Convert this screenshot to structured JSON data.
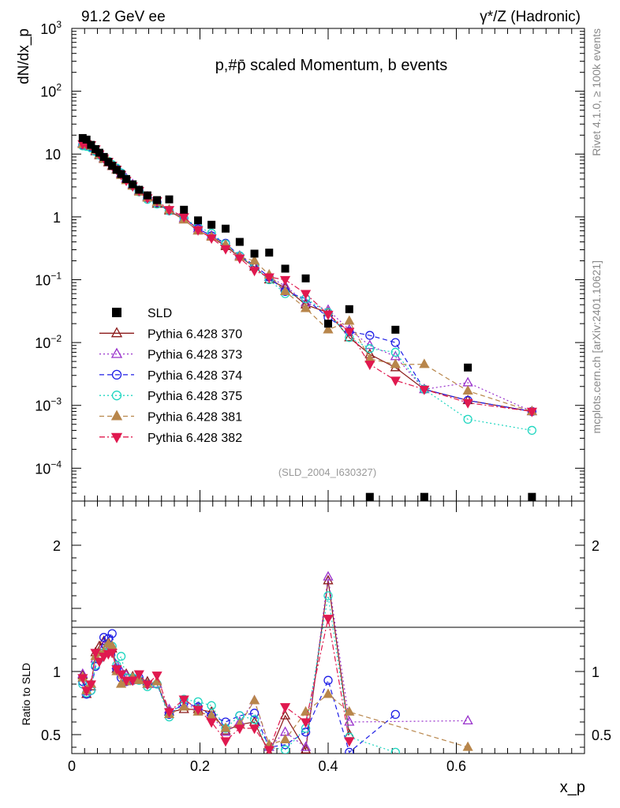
{
  "header": {
    "left": "91.2 GeV ee",
    "right": "γ*/Z (Hadronic)"
  },
  "side": {
    "rivet": "Rivet 4.1.0, ≥ 100k events",
    "mcplots": "mcplots.cern.ch [arXiv:2401.10621]"
  },
  "chart_data": {
    "type": "scatter",
    "title": "p,#p̄ scaled Momentum, b events",
    "analysis_label": "(SLD_2004_I630327)",
    "xlabel": "x_p",
    "ylabel": "dN/dx_p",
    "ratio_ylabel": "Ratio to SLD",
    "xlim": [
      0,
      0.8
    ],
    "ylim": [
      3e-05,
      1000
    ],
    "yscale": "log",
    "ratio_ylim": [
      0.35,
      2.35
    ],
    "x_ticks": [
      "0",
      "0.2",
      "0.4",
      "0.6"
    ],
    "y_ticks": [
      "10^-4",
      "10^-3",
      "10^-2",
      "10^-1",
      "1",
      "10",
      "10^2",
      "10^3"
    ],
    "ratio_ticks": [
      "0.5",
      "1",
      "2"
    ],
    "legend": [
      {
        "name": "SLD",
        "color": "#000000",
        "marker": "filled-square",
        "line": "none"
      },
      {
        "name": "Pythia 6.428 370",
        "color": "#8b1a1a",
        "marker": "open-triangle-up",
        "line": "solid"
      },
      {
        "name": "Pythia 6.428 373",
        "color": "#9932cc",
        "marker": "open-triangle-up",
        "line": "dotted"
      },
      {
        "name": "Pythia 6.428 374",
        "color": "#1e1ee6",
        "marker": "open-circle",
        "line": "dashed"
      },
      {
        "name": "Pythia 6.428 375",
        "color": "#1fd6c0",
        "marker": "open-circle",
        "line": "dotted"
      },
      {
        "name": "Pythia 6.428 381",
        "color": "#b8864b",
        "marker": "filled-triangle-up",
        "line": "dashed"
      },
      {
        "name": "Pythia 6.428 382",
        "color": "#e0194f",
        "marker": "filled-triangle-down",
        "line": "dashdot"
      }
    ],
    "x": [
      0.017,
      0.023,
      0.03,
      0.037,
      0.043,
      0.05,
      0.057,
      0.063,
      0.07,
      0.077,
      0.085,
      0.095,
      0.105,
      0.118,
      0.133,
      0.152,
      0.175,
      0.197,
      0.218,
      0.24,
      0.262,
      0.285,
      0.308,
      0.333,
      0.365,
      0.4,
      0.433,
      0.465,
      0.505,
      0.55,
      0.618,
      0.718
    ],
    "sld": [
      18,
      17,
      14,
      12,
      10.5,
      9,
      7.5,
      6.5,
      5.6,
      4.8,
      4.0,
      3.3,
      2.7,
      2.2,
      1.85,
      1.9,
      1.3,
      0.88,
      0.75,
      0.65,
      0.4,
      0.26,
      0.27,
      0.15,
      0.105,
      0.02,
      0.034,
      3.5e-05,
      0.016,
      3.5e-05,
      0.004,
      3.5e-05
    ],
    "series": [
      {
        "name": "Pythia 6.428 370",
        "values": [
          14.5,
          14.2,
          13,
          11,
          9.5,
          8.3,
          7.3,
          6.4,
          5.6,
          4.8,
          4.0,
          3.2,
          2.6,
          2.0,
          1.6,
          1.25,
          0.9,
          0.6,
          0.48,
          0.34,
          0.23,
          0.16,
          0.1,
          0.075,
          0.04,
          0.03,
          0.012,
          0.0065,
          0.004,
          0.0018,
          0.0012,
          0.0008
        ]
      },
      {
        "name": "Pythia 6.428 373",
        "values": [
          15,
          14.5,
          13.5,
          11.3,
          9.8,
          8.6,
          7.5,
          6.5,
          5.7,
          4.9,
          4.1,
          3.3,
          2.6,
          2.1,
          1.7,
          1.3,
          0.95,
          0.65,
          0.5,
          0.36,
          0.24,
          0.17,
          0.11,
          0.08,
          0.043,
          0.033,
          0.016,
          0.009,
          0.006,
          0.0018,
          0.0023,
          0.0008
        ]
      },
      {
        "name": "Pythia 6.428 374",
        "values": [
          14,
          13.8,
          13,
          11,
          9.9,
          8.8,
          7.6,
          6.6,
          5.8,
          5.0,
          4.0,
          3.2,
          2.6,
          2.0,
          1.7,
          1.25,
          0.95,
          0.65,
          0.5,
          0.38,
          0.24,
          0.17,
          0.11,
          0.065,
          0.05,
          0.025,
          0.015,
          0.013,
          0.01,
          0.0018,
          0.0012,
          0.0008
        ]
      },
      {
        "name": "Pythia 6.428 375",
        "values": [
          13.5,
          13.2,
          12.5,
          11,
          9.6,
          8.5,
          7.7,
          6.8,
          6.0,
          5.0,
          4.0,
          3.1,
          2.5,
          1.9,
          1.6,
          1.25,
          0.95,
          0.7,
          0.55,
          0.37,
          0.24,
          0.16,
          0.1,
          0.06,
          0.05,
          0.03,
          0.012,
          0.008,
          0.007,
          0.0018,
          0.0006,
          0.0004
        ]
      },
      {
        "name": "Pythia 6.428 381",
        "values": [
          14.2,
          14,
          13.5,
          11.5,
          9.8,
          8.4,
          7.5,
          6.5,
          5.6,
          4.6,
          3.8,
          3.1,
          2.5,
          2.0,
          1.7,
          1.3,
          0.9,
          0.6,
          0.48,
          0.36,
          0.23,
          0.2,
          0.12,
          0.065,
          0.035,
          0.016,
          0.022,
          0.0055,
          0.0045,
          0.0045,
          0.0017,
          0.0008
        ]
      },
      {
        "name": "Pythia 6.428 382",
        "values": [
          14.5,
          14.5,
          14,
          12,
          10,
          8.6,
          7.6,
          6.6,
          5.7,
          4.7,
          3.8,
          3.1,
          2.6,
          2.0,
          1.8,
          1.3,
          1.0,
          0.62,
          0.46,
          0.31,
          0.22,
          0.14,
          0.11,
          0.1,
          0.06,
          0.028,
          0.015,
          0.0045,
          0.0025,
          0.0018,
          0.0011,
          0.0008
        ]
      }
    ],
    "ratios": [
      {
        "name": "Pythia 6.428 370",
        "values": [
          0.97,
          0.82,
          0.88,
          1.15,
          1.2,
          1.24,
          1.23,
          1.18,
          1.02,
          1.0,
          0.98,
          0.96,
          0.95,
          0.92,
          0.9,
          0.68,
          0.7,
          0.7,
          0.68,
          0.53,
          0.58,
          0.6,
          0.35,
          0.65,
          0.38,
          1.72,
          0.5
        ]
      },
      {
        "name": "Pythia 6.428 373",
        "values": [
          0.98,
          0.84,
          0.9,
          1.1,
          1.15,
          1.2,
          1.22,
          1.2,
          1.05,
          1.0,
          0.97,
          0.95,
          0.93,
          0.9,
          0.9,
          0.7,
          0.72,
          0.72,
          0.65,
          0.52,
          0.6,
          0.77,
          0.4,
          0.52,
          0.4,
          1.75,
          0.6,
          null,
          null,
          null,
          0.61
        ]
      },
      {
        "name": "Pythia 6.428 374",
        "values": [
          0.92,
          0.82,
          0.85,
          1.04,
          1.1,
          1.27,
          1.26,
          1.3,
          1.02,
          0.95,
          0.92,
          0.93,
          0.95,
          0.9,
          0.9,
          0.66,
          0.75,
          0.72,
          0.65,
          0.6,
          0.65,
          0.67,
          0.4,
          0.42,
          0.52,
          0.93,
          0.36,
          null,
          0.66,
          null,
          null
        ]
      },
      {
        "name": "Pythia 6.428 375",
        "values": [
          0.9,
          0.83,
          0.85,
          1.05,
          1.1,
          1.15,
          1.2,
          1.2,
          1.05,
          1.12,
          0.95,
          0.95,
          0.93,
          0.88,
          0.9,
          0.64,
          0.78,
          0.76,
          0.73,
          0.55,
          0.65,
          0.62,
          0.4,
          0.38,
          0.55,
          1.6,
          0.48,
          null,
          0.36
        ]
      },
      {
        "name": "Pythia 6.428 381",
        "values": [
          0.95,
          0.85,
          0.9,
          1.12,
          1.15,
          1.15,
          1.22,
          1.2,
          1.0,
          0.9,
          0.92,
          0.95,
          0.93,
          0.9,
          0.92,
          0.66,
          0.72,
          0.68,
          0.65,
          0.55,
          0.58,
          0.77,
          0.42,
          0.46,
          0.68,
          0.82,
          0.68,
          null,
          null,
          null,
          0.4
        ]
      },
      {
        "name": "Pythia 6.428 382",
        "values": [
          0.95,
          0.85,
          0.9,
          1.15,
          1.08,
          1.12,
          1.14,
          1.15,
          1.02,
          0.98,
          0.93,
          0.93,
          0.98,
          0.9,
          0.97,
          0.68,
          0.78,
          0.7,
          0.6,
          0.45,
          0.55,
          0.55,
          0.38,
          0.72,
          0.6,
          1.42,
          0.45
        ]
      }
    ]
  }
}
